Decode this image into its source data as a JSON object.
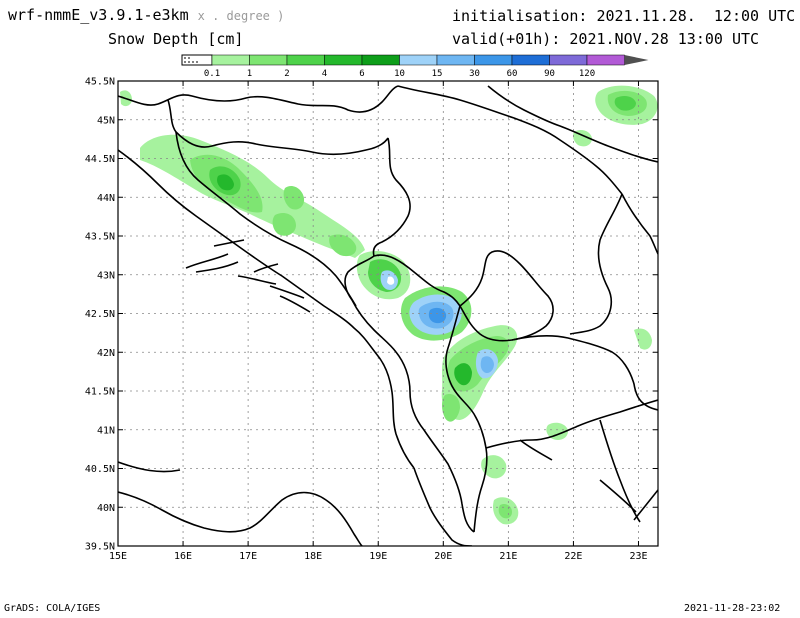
{
  "header": {
    "model_name": "wrf-nmmE_v3.9.1-e3km",
    "model_suffix": "x . degree )",
    "variable": "Snow Depth [cm]",
    "init_label": "initialisation: 2021.11.28.  12:00 UTC",
    "valid_label": "valid(+01h): 2021.NOV.28 13:00 UTC"
  },
  "legend": {
    "ticks": [
      "0.1",
      "1",
      "2",
      "4",
      "6",
      "10",
      "15",
      "30",
      "60",
      "90",
      "120"
    ],
    "colors": [
      "#a6f29e",
      "#7ee572",
      "#4ed24a",
      "#24b82c",
      "#0e9e1a",
      "#9ed2f8",
      "#6eb6f2",
      "#3c96e8",
      "#1e6ed6",
      "#7e6ad8",
      "#b25ad6",
      "#505050"
    ]
  },
  "map": {
    "lon_labels": [
      "15E",
      "16E",
      "17E",
      "18E",
      "19E",
      "20E",
      "21E",
      "22E",
      "23E"
    ],
    "lat_labels": [
      "45.5N",
      "45N",
      "44.5N",
      "44N",
      "43.5N",
      "43N",
      "42.5N",
      "42N",
      "41.5N",
      "41N",
      "40.5N",
      "40N",
      "39.5N"
    ],
    "lon_range": [
      15,
      23.3
    ],
    "lat_range": [
      39.5,
      45.5
    ]
  },
  "footer": {
    "left": "GrADS: COLA/IGES",
    "right": "2021-11-28-23:02"
  }
}
